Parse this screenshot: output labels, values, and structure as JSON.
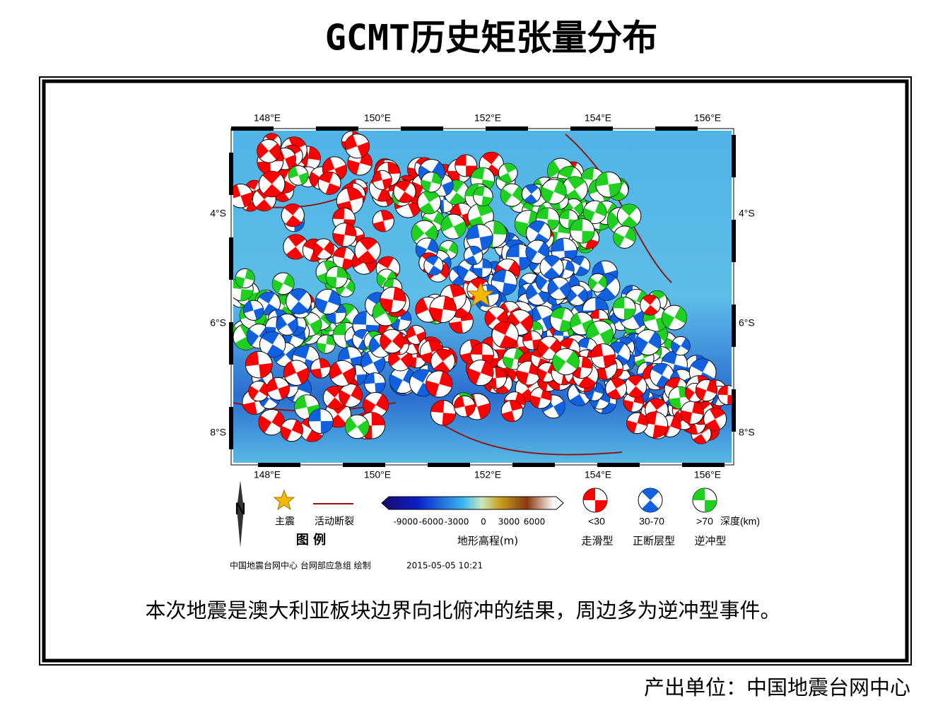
{
  "header": {
    "title": "GCMT历史矩张量分布"
  },
  "map": {
    "top_labels": [
      "148°E",
      "150°E",
      "152°E",
      "154°E",
      "156°E"
    ],
    "bottom_labels": [
      "148°E",
      "150°E",
      "152°E",
      "154°E",
      "156°E"
    ],
    "left_labels": [
      "4°S",
      "6°S",
      "8°S"
    ],
    "right_labels": [
      "4°S",
      "6°S",
      "8°S"
    ]
  },
  "legend": {
    "north": "N",
    "star": "主震",
    "fault": "活动断裂",
    "legend_title": "图  例",
    "scale_labels": [
      -9000,
      -6000,
      -3000,
      0,
      3000,
      6000
    ],
    "scale_title": "地形高程(m)",
    "depths": [
      "<30",
      "30-70",
      ">70"
    ],
    "depth_unit": "深度(km)",
    "types": [
      "走滑型",
      "正断层型",
      "逆冲型"
    ]
  },
  "credits": {
    "maker": "中国地震台网中心 台网部应急组 绘制",
    "time": "2015-05-05 10:21"
  },
  "caption": "本次地震是澳大利亚板块边界向北俯冲的结果，周边多为逆冲型事件。",
  "footer": "产出单位：中国地震台网中心"
}
